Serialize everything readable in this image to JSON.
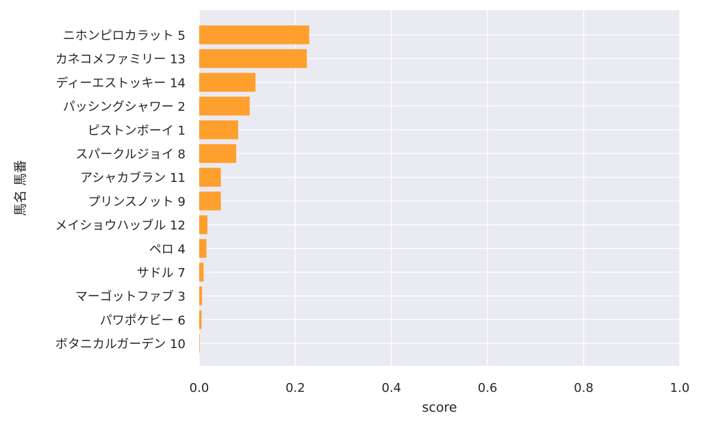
{
  "chart_data": {
    "type": "bar",
    "orientation": "horizontal",
    "categories": [
      "ニホンピロカラット 5",
      "カネコメファミリー 13",
      "ディーエストッキー 14",
      "パッシングシャワー 2",
      "ピストンボーイ 1",
      "スパークルジョイ 8",
      "アシャカブラン 11",
      "プリンスノット 9",
      "メイショウハッブル 12",
      "ペロ 4",
      "サドル 7",
      "マーゴットファブ 3",
      "パワポケビー 6",
      "ボタニカルガーデン 10"
    ],
    "values": [
      0.229,
      0.224,
      0.117,
      0.105,
      0.081,
      0.077,
      0.045,
      0.045,
      0.017,
      0.015,
      0.009,
      0.006,
      0.005,
      0.001
    ],
    "xlabel": "score",
    "ylabel": "馬名 馬番",
    "xlim": [
      0,
      1.0
    ],
    "xticks": [
      "0.0",
      "0.2",
      "0.4",
      "0.6",
      "0.8",
      "1.0"
    ],
    "xtick_values": [
      0,
      0.2,
      0.4,
      0.6,
      0.8,
      1.0
    ],
    "grid": true,
    "bar_color": "#ff9f2e",
    "plot_background": "#eaeaf2"
  }
}
